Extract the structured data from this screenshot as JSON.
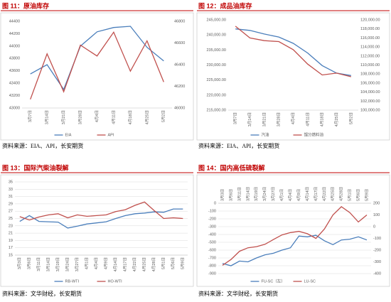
{
  "chart_data": [
    {
      "type": "line",
      "title": "图 11：原油库存",
      "source": "资料来源：EIA、API，长安期货",
      "categories": [
        "3月7日",
        "3月14日",
        "3月21日",
        "3月28日",
        "4月4日",
        "4月11日",
        "4月18日",
        "4月25日",
        "5月2日"
      ],
      "series": [
        {
          "name": "EIA",
          "color": "#4a7ebb",
          "values": [
            43550,
            43700,
            43300,
            44000,
            44230,
            44300,
            44320,
            43980,
            43760
          ]
        },
        {
          "name": "API",
          "color": "#c0504d",
          "axis": "y2",
          "values": [
            46080,
            46500,
            46150,
            46580,
            46480,
            46700,
            46340,
            46620,
            46240
          ]
        }
      ],
      "ylim": [
        43000,
        44400
      ],
      "yticks": [
        43000,
        43200,
        43400,
        43600,
        43800,
        44000,
        44200,
        44400
      ],
      "y2lim": [
        46000,
        46800
      ],
      "y2ticks": [
        46000,
        46200,
        46400,
        46600,
        46800
      ],
      "grid": false
    },
    {
      "type": "line",
      "title": "图 12：成品油库存",
      "source": "资料来源：EIA、API，长安期货",
      "categories": [
        "3月7日",
        "3月14日",
        "3月21日",
        "3月28日",
        "4月4日",
        "4月11日",
        "4月18日",
        "4月25日",
        "5月2日"
      ],
      "series": [
        {
          "name": "汽油",
          "color": "#4a7ebb",
          "values": [
            242000,
            241500,
            240300,
            239300,
            237200,
            234000,
            229800,
            227300,
            226500
          ]
        },
        {
          "name": "馏分燃料油",
          "color": "#c0504d",
          "axis": "y2",
          "values": [
            118600,
            116000,
            115400,
            115200,
            113400,
            110200,
            107800,
            108200,
            107400
          ]
        }
      ],
      "ylim": [
        215000,
        245000
      ],
      "yticks": [
        {
          "value": 215000,
          "label": "215,000.00"
        },
        {
          "value": 220000,
          "label": "220,000.00"
        },
        {
          "value": 225000,
          "label": "225,000.00"
        },
        {
          "value": 230000,
          "label": "230,000.00"
        },
        {
          "value": 235000,
          "label": "235,000.00"
        },
        {
          "value": 240000,
          "label": "240,000.00"
        },
        {
          "value": 245000,
          "label": "245,000.00"
        }
      ],
      "y2lim": [
        100000,
        120000
      ],
      "y2ticks": [
        {
          "value": 100000,
          "label": "100,000.00"
        },
        {
          "value": 102000,
          "label": "102,000.00"
        },
        {
          "value": 104000,
          "label": "104,000.00"
        },
        {
          "value": 106000,
          "label": "106,000.00"
        },
        {
          "value": 108000,
          "label": "108,000.00"
        },
        {
          "value": 110000,
          "label": "110,000.00"
        },
        {
          "value": 112000,
          "label": "112,000.00"
        },
        {
          "value": 114000,
          "label": "114,000.00"
        },
        {
          "value": 116000,
          "label": "116,000.00"
        },
        {
          "value": 118000,
          "label": "118,000.00"
        },
        {
          "value": 120000,
          "label": "120,000.00"
        }
      ],
      "grid": false
    },
    {
      "type": "line",
      "title": "图 13：国际汽柴油裂解",
      "source": "资料来源：文华财经，长安期货",
      "categories": [
        "3月3日",
        "3月6日",
        "3月11日",
        "3月14日",
        "3月19日",
        "3月24日",
        "3月27日",
        "4月1日",
        "4月4日",
        "4月9日",
        "4月14日",
        "4月17日",
        "4月22日",
        "4月25日",
        "4月28日",
        "5月1日",
        "5月6日",
        "5月9日"
      ],
      "series": [
        {
          "name": "RB-WTI",
          "color": "#4a7ebb",
          "values": [
            24.2,
            25.8,
            24.2,
            24.1,
            24,
            22.4,
            22.9,
            23.5,
            23.8,
            24.1,
            25,
            25.8,
            26.3,
            26.5,
            26.8,
            26.7,
            27.6,
            27.6
          ]
        },
        {
          "name": "HO-WTI",
          "color": "#c0504d",
          "values": [
            25.5,
            24.6,
            25.4,
            26,
            26.3,
            25.2,
            26,
            25.6,
            25.8,
            26,
            26.9,
            27.4,
            28.6,
            29.5,
            27.2,
            25,
            25.2,
            25
          ]
        }
      ],
      "ylim": [
        15,
        35
      ],
      "yticks": [
        15,
        17,
        19,
        21,
        23,
        25,
        27,
        29,
        31,
        33,
        35
      ],
      "grid": true
    },
    {
      "type": "line",
      "title": "图 14：国内高低硫裂解",
      "source": "资料来源：文华财经，长安期货",
      "categories": [
        "3月3日",
        "3月6日",
        "3月11日",
        "3月14日",
        "3月19日",
        "3月24日",
        "3月27日",
        "4月1日",
        "4月4日",
        "4月9日",
        "4月14日",
        "4月17日",
        "4月22日",
        "4月25日",
        "4月28日",
        "5月1日",
        "5月6日",
        "5月9日"
      ],
      "series": [
        {
          "name": "FU-SC（左）",
          "color": "#4a7ebb",
          "values": [
            -770,
            -800,
            -740,
            -750,
            -700,
            -660,
            -640,
            -600,
            -570,
            -420,
            -430,
            -410,
            -480,
            -530,
            -470,
            -460,
            -430,
            -470
          ]
        },
        {
          "name": "LU-SC",
          "color": "#c0504d",
          "axis": "y2",
          "values": [
            -330,
            -280,
            -210,
            -180,
            -170,
            -150,
            -110,
            -70,
            -50,
            -40,
            -60,
            -100,
            -20,
            100,
            170,
            120,
            40,
            100
          ]
        }
      ],
      "ylim": [
        -900,
        0
      ],
      "yticks": [
        -900,
        -800,
        -700,
        -600,
        -500,
        -400,
        -300,
        -200,
        -100,
        0
      ],
      "y2lim": [
        -400,
        200
      ],
      "y2ticks": [
        -400,
        -300,
        -200,
        -100,
        0,
        100,
        200
      ],
      "grid": true
    }
  ]
}
